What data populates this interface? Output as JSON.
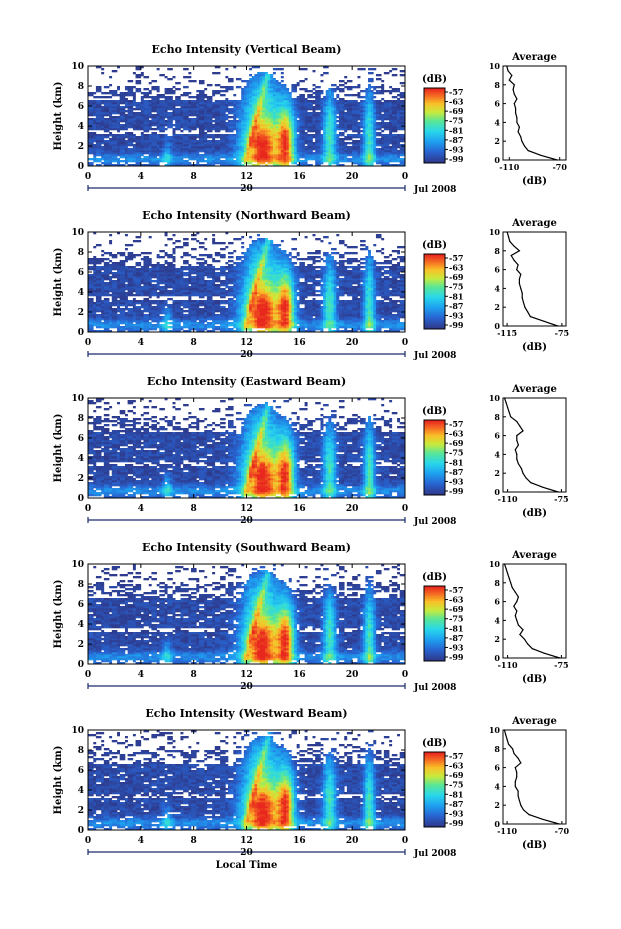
{
  "colors": {
    "background": "#ffffff",
    "low_echo": "#2e3a8c",
    "high_echo": "#e8281e"
  },
  "chart_data": [
    {
      "type": "heatmap",
      "title": "Echo Intensity (Vertical Beam)",
      "ylabel": "Height (km)",
      "xlabel": "",
      "x_ticks": [
        "0",
        "4",
        "8",
        "12",
        "16",
        "20",
        "0"
      ],
      "y_ticks": [
        "0",
        "2",
        "4",
        "6",
        "8",
        "10"
      ],
      "xlim": [
        0,
        24
      ],
      "ylim": [
        0,
        10
      ],
      "date_label": "20",
      "date_suffix": "Jul 2008",
      "colorbar": {
        "title": "(dB)",
        "ticks": [
          "-57",
          "-63",
          "-69",
          "-75",
          "-81",
          "-87",
          "-93",
          "-99"
        ]
      },
      "profile": {
        "title": "Average",
        "xlabel": "(dB)",
        "x_ticks": [
          "-110",
          "-70"
        ],
        "xlim": [
          -115,
          -65
        ],
        "y_ticks": [
          "0",
          "2",
          "4",
          "6",
          "8",
          "10"
        ],
        "height_km": [
          0,
          0.5,
          1,
          1.5,
          2,
          2.5,
          3,
          3.5,
          4,
          4.5,
          5,
          5.5,
          6,
          6.5,
          7,
          7.5,
          8,
          8.5,
          9,
          9.5,
          10
        ],
        "values_db": [
          -72,
          -85,
          -95,
          -98,
          -100,
          -101,
          -103,
          -102,
          -104,
          -104,
          -105,
          -105,
          -106,
          -104,
          -106,
          -107,
          -106,
          -110,
          -108,
          -111,
          -112
        ]
      }
    },
    {
      "type": "heatmap",
      "title": "Echo Intensity (Northward Beam)",
      "ylabel": "Height (km)",
      "xlabel": "",
      "x_ticks": [
        "0",
        "4",
        "8",
        "12",
        "16",
        "20",
        "0"
      ],
      "y_ticks": [
        "0",
        "2",
        "4",
        "6",
        "8",
        "10"
      ],
      "xlim": [
        0,
        24
      ],
      "ylim": [
        0,
        10
      ],
      "date_label": "20",
      "date_suffix": "Jul 2008",
      "colorbar": {
        "title": "(dB)",
        "ticks": [
          "-57",
          "-63",
          "-69",
          "-75",
          "-81",
          "-87",
          "-93",
          "-99"
        ]
      },
      "profile": {
        "title": "Average",
        "xlabel": "(dB)",
        "x_ticks": [
          "-115",
          "-75"
        ],
        "xlim": [
          -118,
          -72
        ],
        "y_ticks": [
          "0",
          "2",
          "4",
          "6",
          "8",
          "10"
        ],
        "height_km": [
          0,
          0.5,
          1,
          1.5,
          2,
          2.5,
          3,
          3.5,
          4,
          4.5,
          5,
          5.5,
          6,
          6.5,
          7,
          7.5,
          8,
          8.5,
          9,
          9.5,
          10
        ],
        "values_db": [
          -78,
          -88,
          -98,
          -100,
          -102,
          -103,
          -104,
          -104,
          -105,
          -106,
          -106,
          -105,
          -108,
          -107,
          -110,
          -112,
          -106,
          -110,
          -113,
          -114,
          -115
        ]
      }
    },
    {
      "type": "heatmap",
      "title": "Echo Intensity (Eastward Beam)",
      "ylabel": "Height (km)",
      "xlabel": "",
      "x_ticks": [
        "0",
        "4",
        "8",
        "12",
        "16",
        "20",
        "0"
      ],
      "y_ticks": [
        "0",
        "2",
        "4",
        "6",
        "8",
        "10"
      ],
      "xlim": [
        0,
        24
      ],
      "ylim": [
        0,
        10
      ],
      "date_label": "20",
      "date_suffix": "Jul 2008",
      "colorbar": {
        "title": "(dB)",
        "ticks": [
          "-57",
          "-63",
          "-69",
          "-75",
          "-81",
          "-87",
          "-93",
          "-99"
        ]
      },
      "profile": {
        "title": "Average",
        "xlabel": "(dB)",
        "x_ticks": [
          "-110",
          "-75"
        ],
        "xlim": [
          -113,
          -72
        ],
        "y_ticks": [
          "0",
          "2",
          "4",
          "6",
          "8",
          "10"
        ],
        "height_km": [
          0,
          0.5,
          1,
          1.5,
          2,
          2.5,
          3,
          3.5,
          4,
          4.5,
          5,
          5.5,
          6,
          6.5,
          7,
          7.5,
          8,
          8.5,
          9,
          9.5,
          10
        ],
        "values_db": [
          -77,
          -87,
          -95,
          -98,
          -100,
          -101,
          -103,
          -104,
          -104,
          -105,
          -103,
          -104,
          -104,
          -100,
          -102,
          -104,
          -108,
          -109,
          -110,
          -111,
          -112
        ]
      }
    },
    {
      "type": "heatmap",
      "title": "Echo Intensity (Southward Beam)",
      "ylabel": "Height (km)",
      "xlabel": "",
      "x_ticks": [
        "0",
        "4",
        "8",
        "12",
        "16",
        "20",
        "0"
      ],
      "y_ticks": [
        "0",
        "2",
        "4",
        "6",
        "8",
        "10"
      ],
      "xlim": [
        0,
        24
      ],
      "ylim": [
        0,
        10
      ],
      "date_label": "20",
      "date_suffix": "Jul 2008",
      "colorbar": {
        "title": "(dB)",
        "ticks": [
          "-57",
          "-63",
          "-69",
          "-75",
          "-81",
          "-87",
          "-93",
          "-99"
        ]
      },
      "profile": {
        "title": "Average",
        "xlabel": "(dB)",
        "x_ticks": [
          "-110",
          "-75"
        ],
        "xlim": [
          -113,
          -72
        ],
        "y_ticks": [
          "0",
          "2",
          "4",
          "6",
          "8",
          "10"
        ],
        "height_km": [
          0,
          0.5,
          1,
          1.5,
          2,
          2.5,
          3,
          3.5,
          4,
          4.5,
          5,
          5.5,
          6,
          6.5,
          7,
          7.5,
          8,
          8.5,
          9,
          9.5,
          10
        ],
        "values_db": [
          -76,
          -86,
          -94,
          -97,
          -99,
          -102,
          -100,
          -103,
          -104,
          -105,
          -104,
          -106,
          -104,
          -103,
          -105,
          -107,
          -108,
          -109,
          -110,
          -111,
          -112
        ]
      }
    },
    {
      "type": "heatmap",
      "title": "Echo Intensity (Westward Beam)",
      "ylabel": "Height (km)",
      "xlabel": "Local Time",
      "x_ticks": [
        "0",
        "4",
        "8",
        "12",
        "16",
        "20",
        "0"
      ],
      "y_ticks": [
        "0",
        "2",
        "4",
        "6",
        "8",
        "10"
      ],
      "xlim": [
        0,
        24
      ],
      "ylim": [
        0,
        10
      ],
      "date_label": "20",
      "date_suffix": "Jul 2008",
      "colorbar": {
        "title": "(dB)",
        "ticks": [
          "-57",
          "-63",
          "-69",
          "-75",
          "-81",
          "-87",
          "-93",
          "-99"
        ]
      },
      "profile": {
        "title": "Average",
        "xlabel": "(dB)",
        "x_ticks": [
          "-110",
          "-70"
        ],
        "xlim": [
          -113,
          -67
        ],
        "y_ticks": [
          "0",
          "2",
          "4",
          "6",
          "8",
          "10"
        ],
        "height_km": [
          0,
          0.5,
          1,
          1.5,
          2,
          2.5,
          3,
          3.5,
          4,
          4.5,
          5,
          5.5,
          6,
          6.5,
          7,
          7.5,
          8,
          8.5,
          9,
          9.5,
          10
        ],
        "values_db": [
          -72,
          -84,
          -94,
          -98,
          -100,
          -101,
          -102,
          -102,
          -104,
          -104,
          -103,
          -103,
          -104,
          -100,
          -102,
          -105,
          -106,
          -109,
          -110,
          -111,
          -112
        ]
      }
    }
  ]
}
